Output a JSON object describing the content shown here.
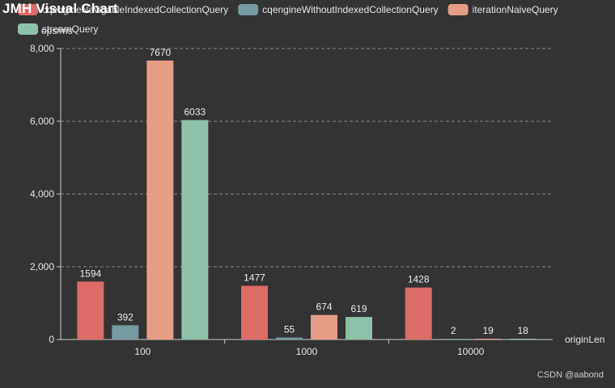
{
  "title": "JMH Visual Chart",
  "watermark": "CSDN @aabond",
  "chart_data": {
    "type": "bar",
    "title": "JMH Visual Chart",
    "xlabel": "originLen",
    "ylabel": "ops/ms",
    "categories": [
      "100",
      "1000",
      "10000"
    ],
    "ylim": [
      0,
      8000
    ],
    "yticks": [
      "0",
      "2,000",
      "4,000",
      "6,000",
      "8,000"
    ],
    "grid": true,
    "legend_position": "top",
    "series": [
      {
        "name": "cqengineNavigableIndexedCollectionQuery",
        "color": "#dd6b66",
        "values": [
          1594,
          1477,
          1428
        ]
      },
      {
        "name": "cqengineWithoutIndexedCollectionQuery",
        "color": "#759aa0",
        "values": [
          392,
          55,
          2
        ]
      },
      {
        "name": "iterationNaiveQuery",
        "color": "#e69d87",
        "values": [
          7670,
          674,
          19
        ]
      },
      {
        "name": "streamQuery",
        "color": "#8dc1a9",
        "values": [
          6033,
          619,
          18
        ]
      }
    ]
  }
}
